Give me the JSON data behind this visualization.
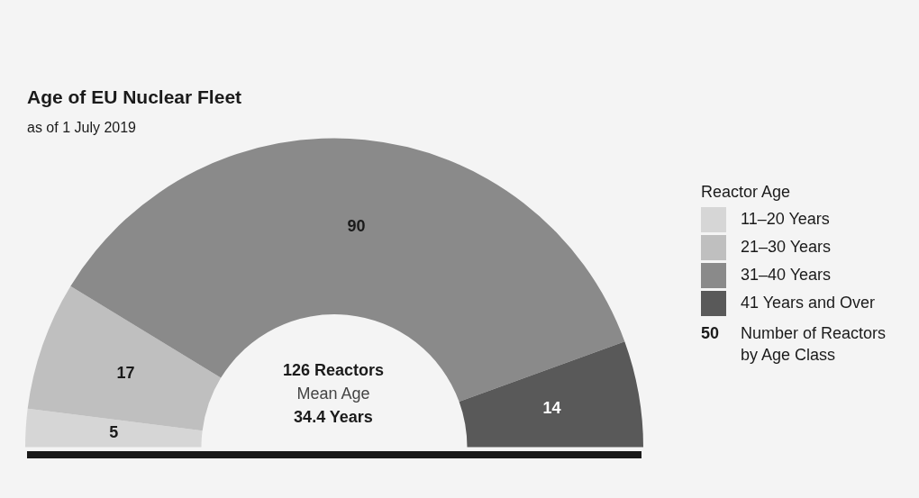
{
  "chart_data": {
    "type": "donut",
    "title": "Age of EU Nuclear Fleet",
    "subtitle": "as of 1 July 2019",
    "legend_title": "Reactor Age",
    "categories": [
      "11–20 Years",
      "21–30 Years",
      "31–40 Years",
      "41 Years and Over"
    ],
    "values": [
      5,
      17,
      90,
      14
    ],
    "colors": [
      "#d6d6d6",
      "#bfbfbf",
      "#8a8a8a",
      "#595959"
    ],
    "data_labels": true,
    "legend": "right",
    "annotations": [
      "126 Reactors",
      "Mean Age",
      "34.4 Years",
      "50 Number of Reactors by Age Class"
    ]
  }
}
